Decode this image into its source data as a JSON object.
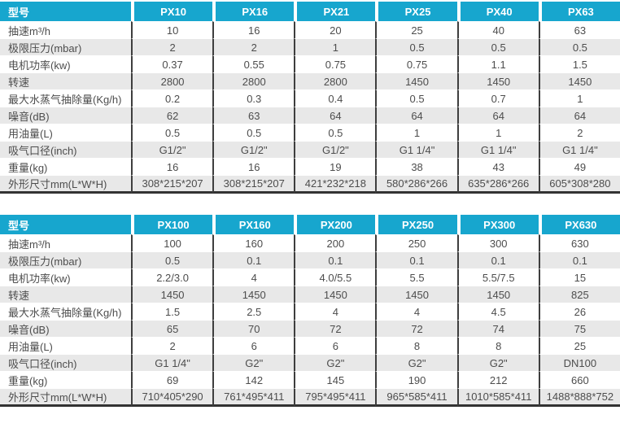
{
  "accent_color": "#17a6ce",
  "stripe_color": "#e8e8e8",
  "divider_color": "#3e3e3e",
  "tables": [
    {
      "name": "spec-table-1",
      "header_label": "型号",
      "columns": [
        "PX10",
        "PX16",
        "PX21",
        "PX25",
        "PX40",
        "PX63"
      ],
      "rows": [
        {
          "label": "抽速m³/h",
          "values": [
            "10",
            "16",
            "20",
            "25",
            "40",
            "63"
          ]
        },
        {
          "label": "极限压力(mbar)",
          "values": [
            "2",
            "2",
            "1",
            "0.5",
            "0.5",
            "0.5"
          ]
        },
        {
          "label": "电机功率(kw)",
          "values": [
            "0.37",
            "0.55",
            "0.75",
            "0.75",
            "1.1",
            "1.5"
          ]
        },
        {
          "label": "转速",
          "values": [
            "2800",
            "2800",
            "2800",
            "1450",
            "1450",
            "1450"
          ]
        },
        {
          "label": "最大水蒸气抽除量(Kg/h)",
          "values": [
            "0.2",
            "0.3",
            "0.4",
            "0.5",
            "0.7",
            "1"
          ]
        },
        {
          "label": "噪音(dB)",
          "values": [
            "62",
            "63",
            "64",
            "64",
            "64",
            "64"
          ]
        },
        {
          "label": "用油量(L)",
          "values": [
            "0.5",
            "0.5",
            "0.5",
            "1",
            "1",
            "2"
          ]
        },
        {
          "label": "吸气口径(inch)",
          "values": [
            "G1/2\"",
            "G1/2\"",
            "G1/2\"",
            "G1 1/4\"",
            "G1 1/4\"",
            "G1 1/4\""
          ]
        },
        {
          "label": "重量(kg)",
          "values": [
            "16",
            "16",
            "19",
            "38",
            "43",
            "49"
          ]
        },
        {
          "label": "外形尺寸mm(L*W*H)",
          "values": [
            "308*215*207",
            "308*215*207",
            "421*232*218",
            "580*286*266",
            "635*286*266",
            "605*308*280"
          ]
        }
      ]
    },
    {
      "name": "spec-table-2",
      "header_label": "型号",
      "columns": [
        "PX100",
        "PX160",
        "PX200",
        "PX250",
        "PX300",
        "PX630"
      ],
      "rows": [
        {
          "label": "抽速m³/h",
          "values": [
            "100",
            "160",
            "200",
            "250",
            "300",
            "630"
          ]
        },
        {
          "label": "极限压力(mbar)",
          "values": [
            "0.5",
            "0.1",
            "0.1",
            "0.1",
            "0.1",
            "0.1"
          ]
        },
        {
          "label": "电机功率(kw)",
          "values": [
            "2.2/3.0",
            "4",
            "4.0/5.5",
            "5.5",
            "5.5/7.5",
            "15"
          ]
        },
        {
          "label": "转速",
          "values": [
            "1450",
            "1450",
            "1450",
            "1450",
            "1450",
            "825"
          ]
        },
        {
          "label": "最大水蒸气抽除量(Kg/h)",
          "values": [
            "1.5",
            "2.5",
            "4",
            "4",
            "4.5",
            "26"
          ]
        },
        {
          "label": "噪音(dB)",
          "values": [
            "65",
            "70",
            "72",
            "72",
            "74",
            "75"
          ]
        },
        {
          "label": "用油量(L)",
          "values": [
            "2",
            "6",
            "6",
            "8",
            "8",
            "25"
          ]
        },
        {
          "label": "吸气口径(inch)",
          "values": [
            "G1 1/4\"",
            "G2\"",
            "G2\"",
            "G2\"",
            "G2\"",
            "DN100"
          ]
        },
        {
          "label": "重量(kg)",
          "values": [
            "69",
            "142",
            "145",
            "190",
            "212",
            "660"
          ]
        },
        {
          "label": "外形尺寸mm(L*W*H)",
          "values": [
            "710*405*290",
            "761*495*411",
            "795*495*411",
            "965*585*411",
            "1010*585*411",
            "1488*888*752"
          ]
        }
      ]
    }
  ]
}
